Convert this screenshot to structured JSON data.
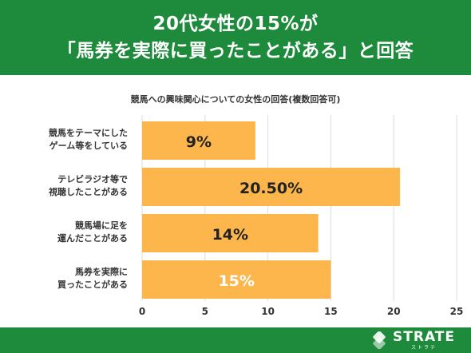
{
  "header": {
    "line1": "20代女性の15%が",
    "line2": "「馬券を実際に買ったことがある」と回答"
  },
  "colors": {
    "brand_green": "#1e8a3c",
    "bar_orange": "#fdb64b",
    "bar_label_dark": "#222222",
    "bar_label_light": "#ffffff"
  },
  "chart_data": {
    "type": "bar",
    "orientation": "horizontal",
    "title": "競馬への興味関心についての女性の回答(複数回答可)",
    "categories": [
      [
        "競馬をテーマにした",
        "ゲーム等をしている"
      ],
      [
        "テレビラジオ等で",
        "視聴したことがある"
      ],
      [
        "競馬場に足を",
        "運んだことがある"
      ],
      [
        "馬券を実際に",
        "買ったことがある"
      ]
    ],
    "values": [
      9,
      20.5,
      14,
      15
    ],
    "data_labels": [
      "9%",
      "20.50%",
      "14%",
      "15%"
    ],
    "x_ticks": [
      0,
      5,
      10,
      15,
      20,
      25
    ],
    "xlim": [
      0,
      25
    ],
    "grid": true
  },
  "footer": {
    "logo_text": "STRATE",
    "logo_sub": "ストラテ",
    "logo_icon": "strate-logo-icon"
  }
}
